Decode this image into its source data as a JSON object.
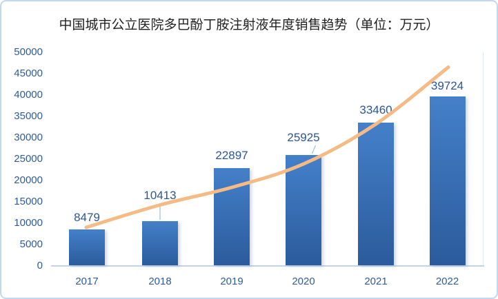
{
  "chart_data": {
    "type": "bar",
    "title": "中国城市公立医院多巴酚丁胺注射液年度销售趋势（单位：万元）",
    "categories": [
      "2017",
      "2018",
      "2019",
      "2020",
      "2021",
      "2022"
    ],
    "values": [
      8479,
      10413,
      22897,
      25925,
      33460,
      39724
    ],
    "data_labels": [
      "8479",
      "10413",
      "22897",
      "25925",
      "33460",
      "39724"
    ],
    "xlabel": "",
    "ylabel": "",
    "ylim": [
      0,
      50000
    ],
    "y_ticks": [
      0,
      5000,
      10000,
      15000,
      20000,
      25000,
      30000,
      35000,
      40000,
      45000,
      50000
    ],
    "grid": false,
    "legend": "none",
    "trendline": {
      "type": "smooth-curve",
      "estimated_values": [
        8970,
        14220,
        18340,
        23830,
        33200,
        46530
      ]
    },
    "colors": {
      "bar_top": "#4480C9",
      "bar_bottom": "#2B5B9C",
      "trend": "#F5BB86",
      "axis_text": "#2E5B97",
      "label_text": "#2A5698",
      "title_text": "#202020",
      "axis_line": "#BFD4EC",
      "plot_edge": "#DCE9F6",
      "frame_border": "#C2D8F0",
      "leader": "#A6C6E8"
    }
  }
}
